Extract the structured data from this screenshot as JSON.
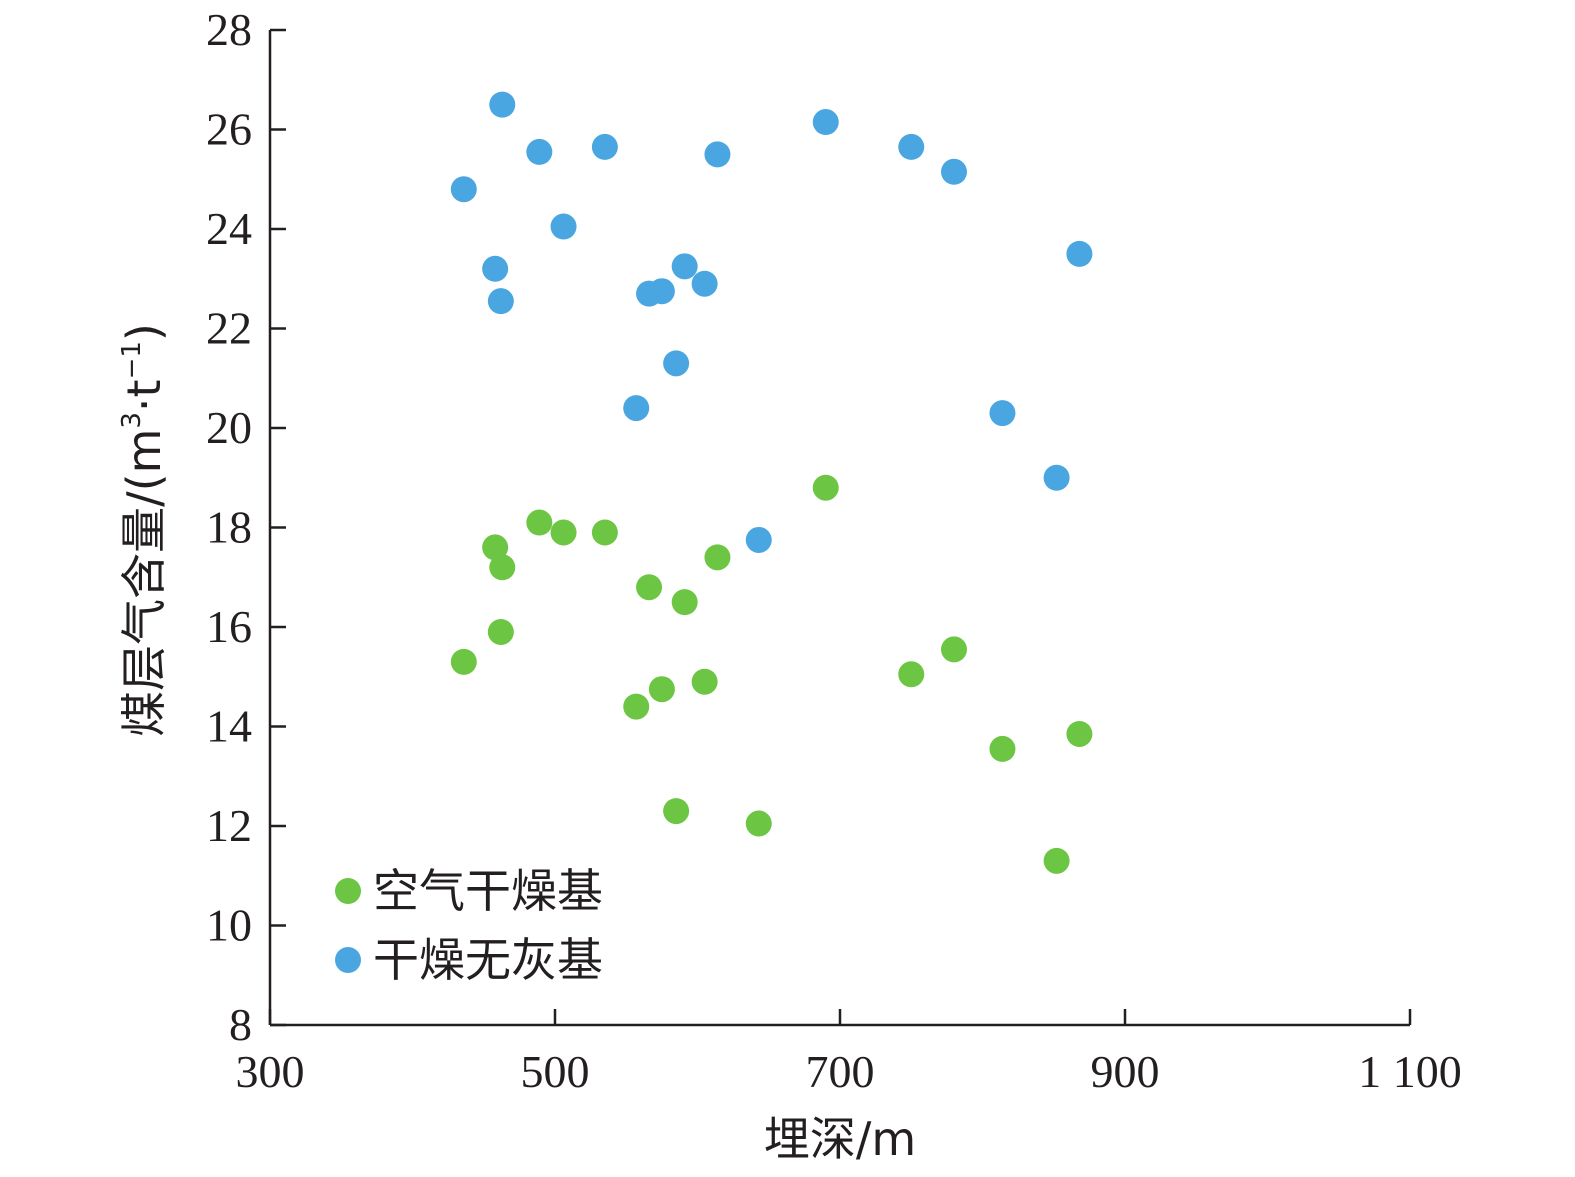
{
  "chart_data": {
    "type": "scatter",
    "title": "",
    "xlabel": "埋深/m",
    "ylabel_main": "煤层气含量/(m",
    "ylabel_sup1": "3",
    "ylabel_mid": "·t",
    "ylabel_sup2": "−1",
    "ylabel_end": ")",
    "xlim": [
      300,
      1100
    ],
    "ylim": [
      8,
      28
    ],
    "xticks": [
      300,
      500,
      700,
      900,
      1100
    ],
    "xtick_labels": [
      "300",
      "500",
      "700",
      "900",
      "1 100"
    ],
    "yticks": [
      8,
      10,
      12,
      14,
      16,
      18,
      20,
      22,
      24,
      26,
      28
    ],
    "ytick_labels": [
      "8",
      "10",
      "12",
      "14",
      "16",
      "18",
      "20",
      "22",
      "24",
      "26",
      "28"
    ],
    "grid": false,
    "legend_position": "bottom-left",
    "series": [
      {
        "name": "空气干燥基",
        "color": "#6cc644",
        "points": [
          {
            "x": 436,
            "y": 15.3
          },
          {
            "x": 458,
            "y": 17.6
          },
          {
            "x": 462,
            "y": 15.9
          },
          {
            "x": 463,
            "y": 17.2
          },
          {
            "x": 489,
            "y": 18.1
          },
          {
            "x": 506,
            "y": 17.9
          },
          {
            "x": 535,
            "y": 17.9
          },
          {
            "x": 557,
            "y": 14.4
          },
          {
            "x": 566,
            "y": 16.8
          },
          {
            "x": 575,
            "y": 14.75
          },
          {
            "x": 585,
            "y": 12.3
          },
          {
            "x": 591,
            "y": 16.5
          },
          {
            "x": 605,
            "y": 14.9
          },
          {
            "x": 614,
            "y": 17.4
          },
          {
            "x": 643,
            "y": 12.05
          },
          {
            "x": 690,
            "y": 18.8
          },
          {
            "x": 750,
            "y": 15.05
          },
          {
            "x": 780,
            "y": 15.55
          },
          {
            "x": 814,
            "y": 13.55
          },
          {
            "x": 852,
            "y": 11.3
          },
          {
            "x": 868,
            "y": 13.85
          }
        ]
      },
      {
        "name": "干燥无灰基",
        "color": "#4aa6e0",
        "points": [
          {
            "x": 436,
            "y": 24.8
          },
          {
            "x": 458,
            "y": 23.2
          },
          {
            "x": 462,
            "y": 22.55
          },
          {
            "x": 463,
            "y": 26.5
          },
          {
            "x": 489,
            "y": 25.55
          },
          {
            "x": 506,
            "y": 24.05
          },
          {
            "x": 535,
            "y": 25.65
          },
          {
            "x": 557,
            "y": 20.4
          },
          {
            "x": 566,
            "y": 22.7
          },
          {
            "x": 575,
            "y": 22.75
          },
          {
            "x": 585,
            "y": 21.3
          },
          {
            "x": 591,
            "y": 23.25
          },
          {
            "x": 605,
            "y": 22.9
          },
          {
            "x": 614,
            "y": 25.5
          },
          {
            "x": 643,
            "y": 17.75
          },
          {
            "x": 690,
            "y": 26.15
          },
          {
            "x": 750,
            "y": 25.65
          },
          {
            "x": 780,
            "y": 25.15
          },
          {
            "x": 814,
            "y": 20.3
          },
          {
            "x": 852,
            "y": 19.0
          },
          {
            "x": 868,
            "y": 23.5
          }
        ]
      }
    ]
  }
}
